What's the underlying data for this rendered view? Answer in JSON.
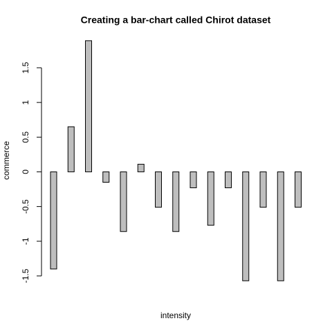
{
  "chart_data": {
    "type": "bar",
    "title": "Creating a bar-chart called Chirot dataset",
    "xlabel": "intensity",
    "ylabel": "commerce",
    "categories": [
      null,
      null,
      null,
      null,
      null,
      null,
      null,
      null,
      null,
      null,
      null,
      null,
      null,
      null,
      null
    ],
    "values": [
      -1.4,
      0.65,
      1.89,
      -0.15,
      -0.86,
      0.11,
      -0.51,
      -0.86,
      -0.23,
      -0.77,
      -0.23,
      -1.57,
      -0.51,
      -1.57,
      -0.51
    ],
    "color": "#bebebe",
    "ylim": [
      -1.71,
      2.03
    ],
    "yticks": [
      -1.5,
      -1.0,
      -0.5,
      0.0,
      0.5,
      1.0,
      1.5
    ],
    "grid": false
  }
}
